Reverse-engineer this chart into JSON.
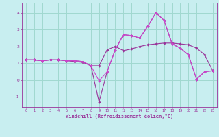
{
  "xlabel": "Windchill (Refroidissement éolien,°C)",
  "bg_color": "#c8eef0",
  "grid_color": "#a0d8d0",
  "line_color1": "#993399",
  "line_color2": "#cc44cc",
  "ylim": [
    -1.6,
    4.6
  ],
  "xlim": [
    -0.5,
    23.5
  ],
  "yticks": [
    -1,
    0,
    1,
    2,
    3,
    4
  ],
  "xticks": [
    0,
    1,
    2,
    3,
    4,
    5,
    6,
    7,
    8,
    9,
    10,
    11,
    12,
    13,
    14,
    15,
    16,
    17,
    18,
    19,
    20,
    21,
    22,
    23
  ],
  "s1_x": [
    0,
    1,
    2,
    3,
    4,
    5,
    6,
    7,
    8,
    9,
    10,
    11,
    12,
    13,
    14,
    15,
    16,
    17,
    18,
    19,
    20,
    21,
    22,
    23
  ],
  "s1_y": [
    1.2,
    1.2,
    1.15,
    1.2,
    1.2,
    1.15,
    1.15,
    1.1,
    0.85,
    0.85,
    1.8,
    2.0,
    1.75,
    1.85,
    2.0,
    2.1,
    2.15,
    2.2,
    2.2,
    2.15,
    2.1,
    1.9,
    1.5,
    0.55
  ],
  "s2_x": [
    0,
    1,
    2,
    3,
    4,
    5,
    6,
    7,
    8,
    9,
    10,
    11,
    12,
    13,
    14,
    15,
    16,
    17,
    18,
    19,
    20,
    21,
    22,
    23
  ],
  "s2_y": [
    1.2,
    1.2,
    1.15,
    1.2,
    1.2,
    1.15,
    1.15,
    1.1,
    0.85,
    -0.05,
    0.5,
    1.8,
    2.7,
    2.65,
    2.5,
    3.2,
    4.0,
    3.55,
    2.15,
    1.9,
    1.5,
    0.05,
    0.5,
    0.55
  ],
  "s3_x": [
    0,
    1,
    2,
    3,
    4,
    5,
    6,
    7,
    8,
    9,
    10,
    11,
    12,
    13,
    14,
    15,
    16,
    17,
    18,
    19,
    20,
    21,
    22,
    23
  ],
  "s3_y": [
    1.2,
    1.2,
    1.15,
    1.2,
    1.2,
    1.15,
    1.1,
    1.05,
    0.85,
    -1.3,
    0.5,
    1.8,
    2.7,
    2.65,
    2.5,
    3.2,
    4.0,
    3.55,
    2.15,
    1.9,
    1.5,
    0.05,
    0.5,
    0.55
  ]
}
